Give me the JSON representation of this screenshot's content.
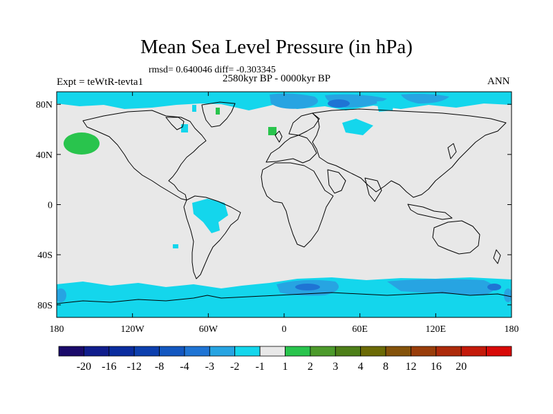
{
  "title": "Mean Sea Level Pressure (in hPa)",
  "stats": "rmsd= 0.640046 diff= -0.303345",
  "period": "2580kyr BP - 0000kyr BP",
  "experiment": "Expt = teWtR-tevta1",
  "season": "ANN",
  "lat_ticks": [
    {
      "label": "80N",
      "value": 80
    },
    {
      "label": "40N",
      "value": 40
    },
    {
      "label": "0",
      "value": 0
    },
    {
      "label": "40S",
      "value": -40
    },
    {
      "label": "80S",
      "value": -80
    }
  ],
  "lon_ticks": [
    {
      "label": "180",
      "value": -180
    },
    {
      "label": "120W",
      "value": -120
    },
    {
      "label": "60W",
      "value": -60
    },
    {
      "label": "0",
      "value": 0
    },
    {
      "label": "60E",
      "value": 60
    },
    {
      "label": "120E",
      "value": 120
    },
    {
      "label": "180",
      "value": 180
    }
  ],
  "colorbar": {
    "colors": [
      "#1a0a6a",
      "#101d8c",
      "#0a2c9e",
      "#0c3fae",
      "#1357c0",
      "#1f74d4",
      "#27a4e2",
      "#14d6ec",
      "#e8e8e8",
      "#29c44d",
      "#4c9a2b",
      "#4d7f18",
      "#6b6a05",
      "#84520a",
      "#993d0a",
      "#ad2a0a",
      "#c41a0a",
      "#d80a08"
    ],
    "labels": [
      "-20",
      "-16",
      "-12",
      "-8",
      "-4",
      "-3",
      "-2",
      "-1",
      "1",
      "2",
      "3",
      "4",
      "8",
      "12",
      "16",
      "20"
    ]
  },
  "palette": {
    "background": "#e8e8e8",
    "light_negative": "#14d6ec",
    "medium_negative": "#27a4e2",
    "strong_negative": "#1f74d4",
    "positive": "#29c44d"
  }
}
